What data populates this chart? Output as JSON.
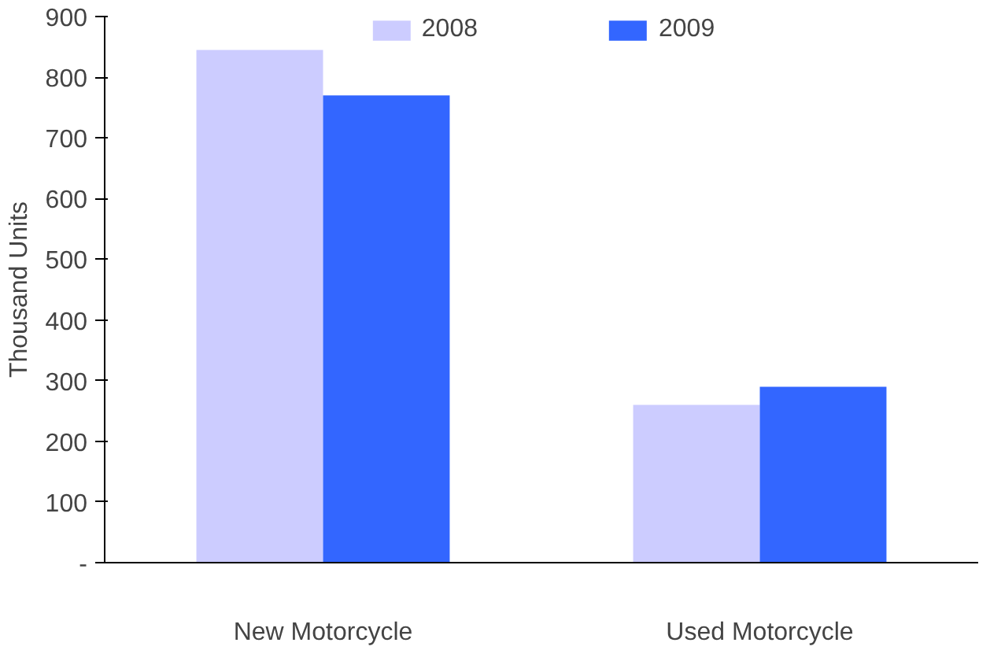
{
  "chart_data": {
    "type": "bar",
    "ylabel": "Thousand Units",
    "categories": [
      "New Motorcycle",
      "Used Motorcycle"
    ],
    "series": [
      {
        "name": "2008",
        "color": "#ccccff",
        "values": [
          845,
          260
        ]
      },
      {
        "name": "2009",
        "color": "#3366ff",
        "values": [
          770,
          290
        ]
      }
    ],
    "ylim": [
      0,
      900
    ],
    "yticks": [
      {
        "value": 0,
        "label": "-"
      },
      100,
      200,
      300,
      400,
      500,
      600,
      700,
      800,
      900
    ],
    "grid": false,
    "legend": "top"
  }
}
